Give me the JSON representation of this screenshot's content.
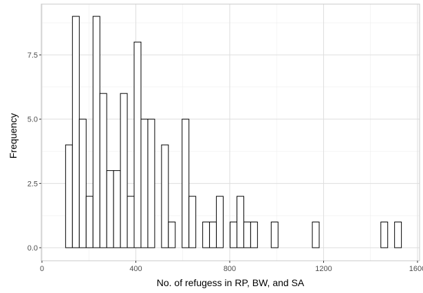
{
  "chart_data": {
    "type": "bar",
    "xlabel": "No. of refugess in RP, BW, and SA",
    "ylabel": "Frequency",
    "xlim": [
      0,
      1600
    ],
    "ylim": [
      0,
      9
    ],
    "x_ticks": [
      0,
      400,
      800,
      1200,
      1600
    ],
    "y_ticks": [
      0.0,
      2.5,
      5.0,
      7.5
    ],
    "x_tick_labels": [
      "0",
      "400",
      "800",
      "1200",
      "1600"
    ],
    "y_tick_labels": [
      "0.0",
      "2.5",
      "5.0",
      "7.5"
    ],
    "grid": true,
    "bin_width": 29.2,
    "bin_start": 71.5,
    "values": [
      0,
      4,
      9,
      5,
      2,
      9,
      6,
      3,
      3,
      6,
      2,
      8,
      5,
      5,
      0,
      4,
      1,
      0,
      5,
      2,
      0,
      1,
      1,
      2,
      0,
      1,
      2,
      1,
      1,
      0,
      0,
      1,
      0,
      0,
      0,
      0,
      0,
      1,
      0,
      0,
      0,
      0,
      0,
      0,
      0,
      0,
      0,
      1,
      0,
      1,
      0
    ],
    "colors": {
      "bar_fill": "#ffffff",
      "bar_stroke": "#000000",
      "grid_major": "#dedede",
      "grid_minor": "#ededed",
      "panel_border": "#c8c8c8"
    }
  }
}
